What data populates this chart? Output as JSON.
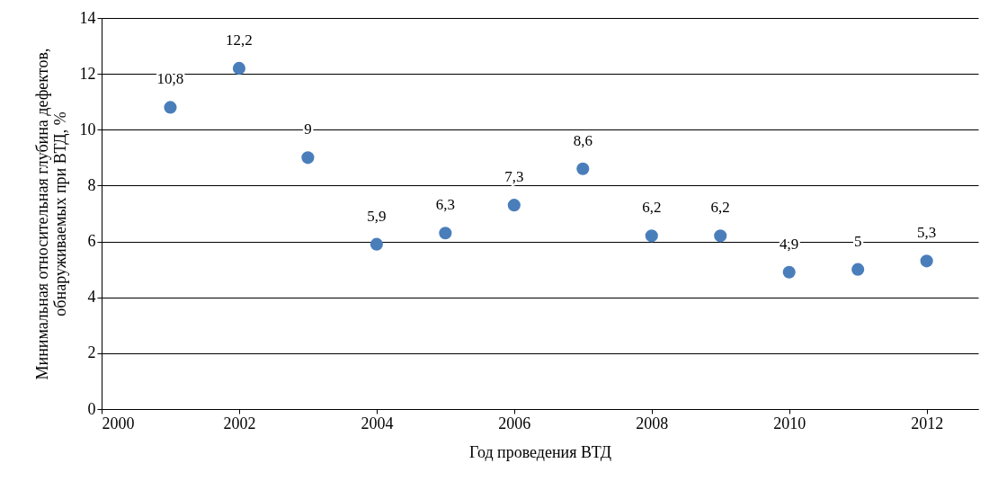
{
  "chart_data": {
    "type": "scatter",
    "xlabel": "Год проведения ВТД",
    "ylabel": "Минимальная относительная глубина дефектов,\nобнаруживаемых при ВТД, %",
    "x": [
      2001,
      2002,
      2003,
      2004,
      2005,
      2006,
      2007,
      2008,
      2009,
      2010,
      2011,
      2012
    ],
    "series": [
      {
        "color": "#4a7ebb",
        "values": [
          10.8,
          12.2,
          9,
          5.9,
          6.3,
          7.3,
          8.6,
          6.2,
          6.2,
          4.9,
          5,
          5.3
        ],
        "value_labels": [
          "10,8",
          "12,2",
          "9",
          "5,9",
          "6,3",
          "7,3",
          "8,6",
          "6,2",
          "6,2",
          "4,9",
          "5",
          "5,3"
        ]
      }
    ],
    "xlim": [
      2000,
      2012.75
    ],
    "xticks": [
      2000,
      2002,
      2004,
      2006,
      2008,
      2010,
      2012
    ],
    "ylim": [
      0,
      14
    ],
    "yticks": [
      0,
      2,
      4,
      6,
      8,
      10,
      12,
      14
    ],
    "grid": "y",
    "marker": "circle"
  }
}
